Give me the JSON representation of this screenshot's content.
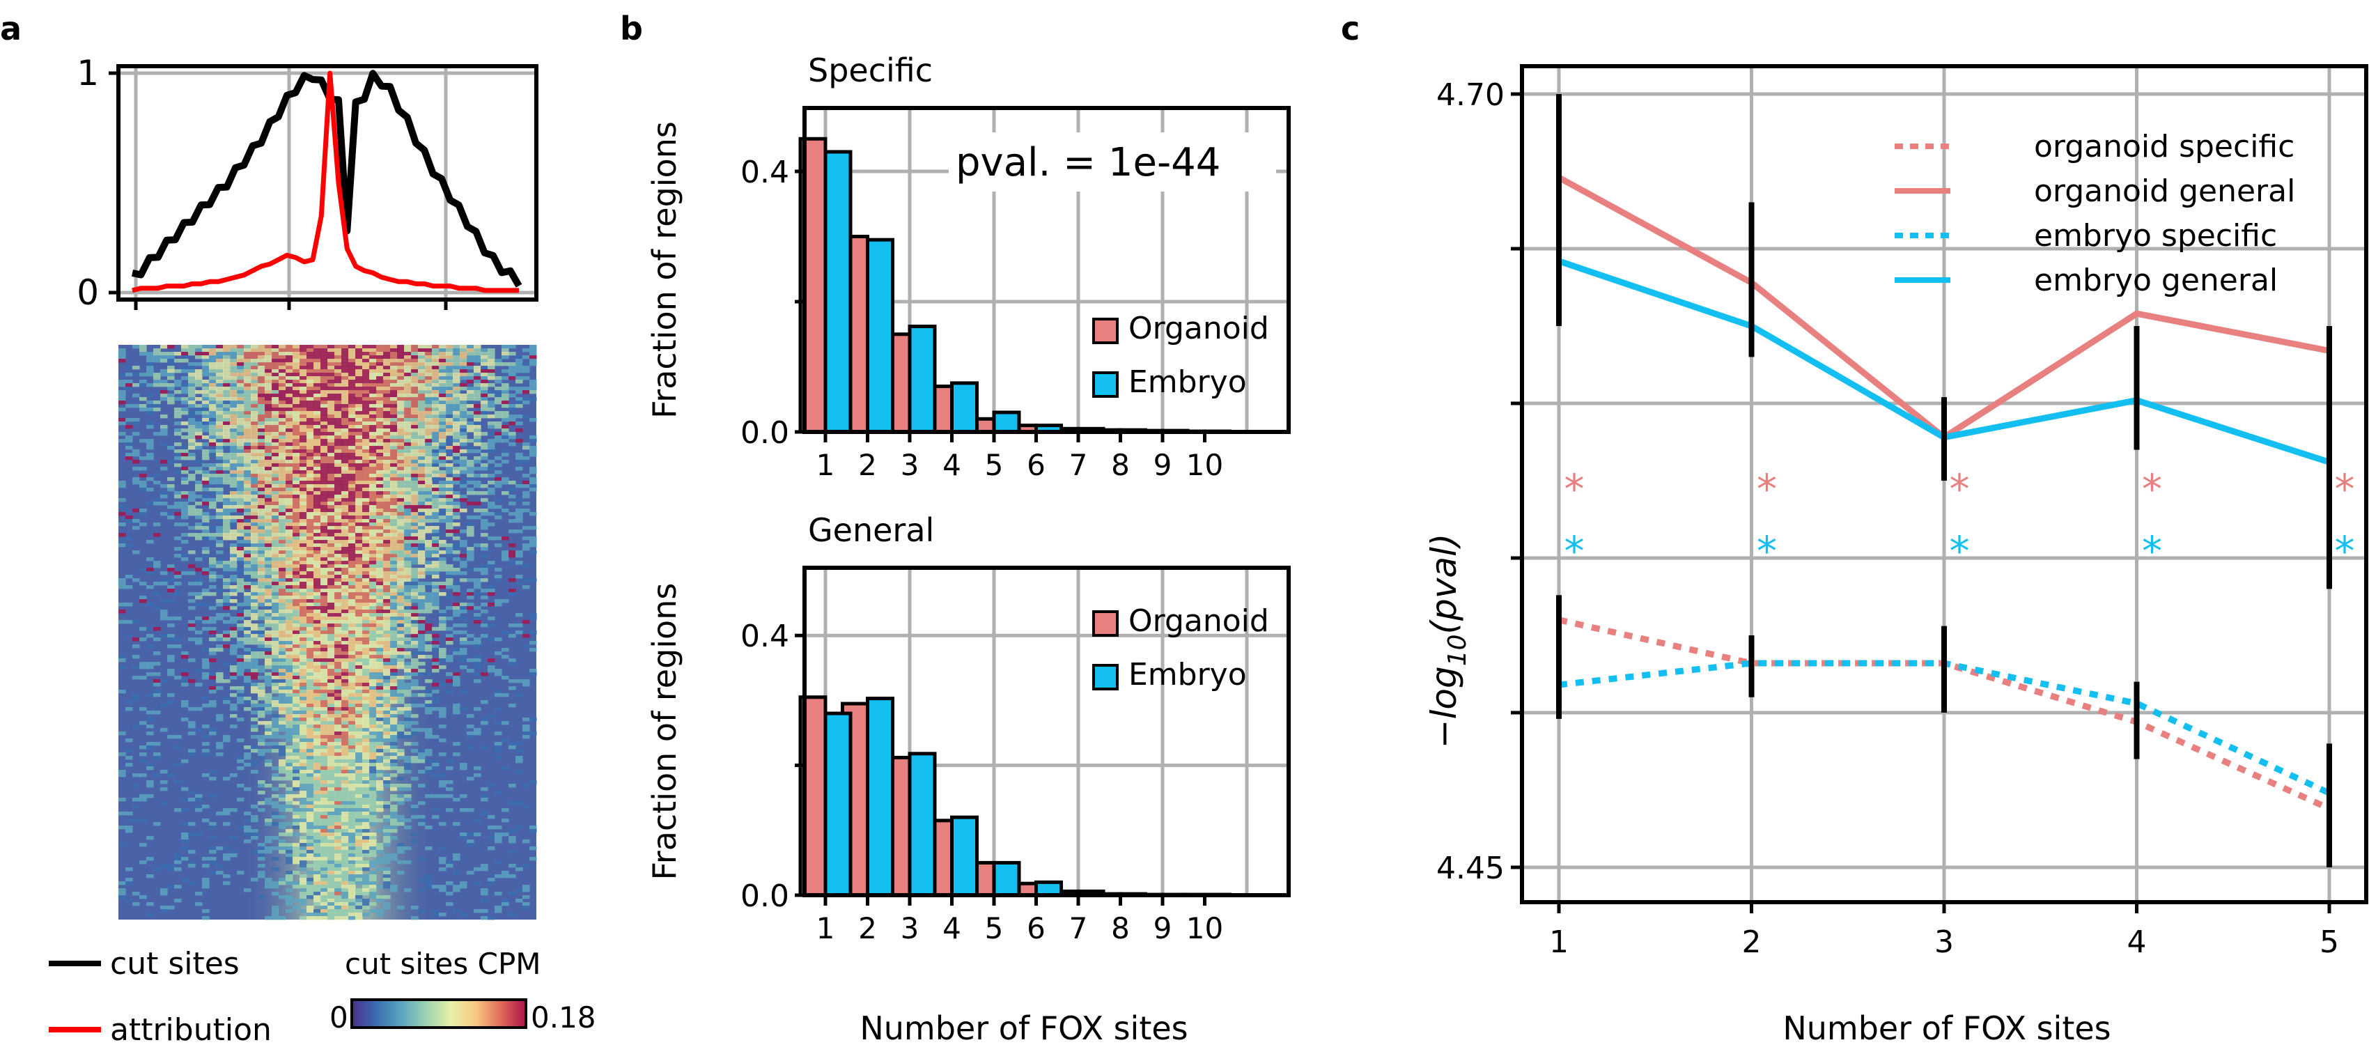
{
  "colors": {
    "organoid": "#E88080",
    "embryo": "#13BEF0",
    "cut_sites": "#000000",
    "attribution": "#FF0000",
    "grid": "#B0B0B0",
    "colormap": [
      "#4A2F8E",
      "#3A6EB0",
      "#5BA6C0",
      "#9ED4B0",
      "#E8F0A8",
      "#F8C880",
      "#E06A58",
      "#A8124A"
    ]
  },
  "panel_labels": [
    "a",
    "b",
    "c"
  ],
  "chart_data": [
    {
      "id": "a-profile",
      "type": "line",
      "yticks": [
        "0",
        "1"
      ],
      "ylim": [
        0,
        1
      ],
      "series": [
        {
          "name": "cut sites",
          "color": "#000000",
          "values": [
            0.07,
            0.1,
            0.14,
            0.18,
            0.22,
            0.26,
            0.3,
            0.34,
            0.38,
            0.42,
            0.46,
            0.5,
            0.55,
            0.6,
            0.65,
            0.7,
            0.76,
            0.82,
            0.88,
            0.93,
            0.97,
            0.99,
            0.95,
            0.9,
            0.86,
            0.3,
            0.85,
            0.9,
            0.98,
            0.96,
            0.92,
            0.85,
            0.78,
            0.7,
            0.63,
            0.56,
            0.5,
            0.44,
            0.38,
            0.32,
            0.26,
            0.2,
            0.15,
            0.11,
            0.08,
            0.05
          ]
        },
        {
          "name": "attribution",
          "color": "#FF0000",
          "values": [
            0.01,
            0.02,
            0.02,
            0.02,
            0.03,
            0.03,
            0.03,
            0.04,
            0.04,
            0.05,
            0.05,
            0.06,
            0.07,
            0.08,
            0.1,
            0.12,
            0.13,
            0.15,
            0.17,
            0.16,
            0.14,
            0.15,
            0.35,
            1.0,
            0.5,
            0.2,
            0.12,
            0.1,
            0.09,
            0.07,
            0.06,
            0.05,
            0.05,
            0.04,
            0.04,
            0.03,
            0.03,
            0.03,
            0.02,
            0.02,
            0.02,
            0.01,
            0.01,
            0.01,
            0.01,
            0.01
          ]
        }
      ],
      "legend": [
        "cut sites",
        "attribution"
      ]
    },
    {
      "id": "a-heatmap",
      "type": "heatmap",
      "colorbar_label": "cut sites CPM",
      "colorbar_ticks": [
        "0",
        "0.18"
      ]
    },
    {
      "id": "b-specific",
      "type": "bar",
      "title": "Specific",
      "ylabel": "Fraction of regions",
      "categories": [
        "1",
        "2",
        "3",
        "4",
        "5",
        "6",
        "7",
        "8",
        "9",
        "10"
      ],
      "yticks": [
        "0.0",
        "0.4"
      ],
      "ylim": [
        0,
        0.5
      ],
      "annotation": "pval. = 1e-44",
      "series": [
        {
          "name": "Organoid",
          "values": [
            0.45,
            0.3,
            0.15,
            0.07,
            0.02,
            0.01,
            0.005,
            0.003,
            0.002,
            0.001
          ]
        },
        {
          "name": "Embryo",
          "values": [
            0.43,
            0.295,
            0.162,
            0.075,
            0.03,
            0.01,
            0.005,
            0.003,
            0.002,
            0.001
          ]
        }
      ]
    },
    {
      "id": "b-general",
      "type": "bar",
      "title": "General",
      "ylabel": "Fraction of regions",
      "xlabel": "Number of FOX sites",
      "categories": [
        "1",
        "2",
        "3",
        "4",
        "5",
        "6",
        "7",
        "8",
        "9",
        "10"
      ],
      "yticks": [
        "0.0",
        "0.4"
      ],
      "ylim": [
        0,
        0.5
      ],
      "series": [
        {
          "name": "Organoid",
          "values": [
            0.305,
            0.295,
            0.212,
            0.115,
            0.05,
            0.018,
            0.006,
            0.002,
            0.001,
            0.001
          ]
        },
        {
          "name": "Embryo",
          "values": [
            0.28,
            0.303,
            0.218,
            0.12,
            0.05,
            0.02,
            0.006,
            0.002,
            0.001,
            0.001
          ]
        }
      ]
    },
    {
      "id": "c",
      "type": "line",
      "xlabel": "Number of FOX sites",
      "ylabel_prefix": "−log",
      "ylabel_sub": "10",
      "ylabel_suffix": "(pval)",
      "categories": [
        "1",
        "2",
        "3",
        "4",
        "5"
      ],
      "yticks": [
        "4.45",
        "4.70"
      ],
      "ylim": [
        4.45,
        4.7
      ],
      "series": [
        {
          "name": "organoid specific",
          "style": "dotted",
          "values": [
            4.53,
            4.516,
            4.516,
            4.497,
            4.469
          ]
        },
        {
          "name": "organoid general",
          "style": "solid",
          "values": [
            4.673,
            4.639,
            4.589,
            4.629,
            4.617
          ]
        },
        {
          "name": "embryo specific",
          "style": "dotted",
          "values": [
            4.509,
            4.516,
            4.516,
            4.503,
            4.474
          ]
        },
        {
          "name": "embryo general",
          "style": "solid",
          "values": [
            4.646,
            4.625,
            4.589,
            4.601,
            4.581
          ]
        }
      ],
      "star": "*"
    }
  ]
}
